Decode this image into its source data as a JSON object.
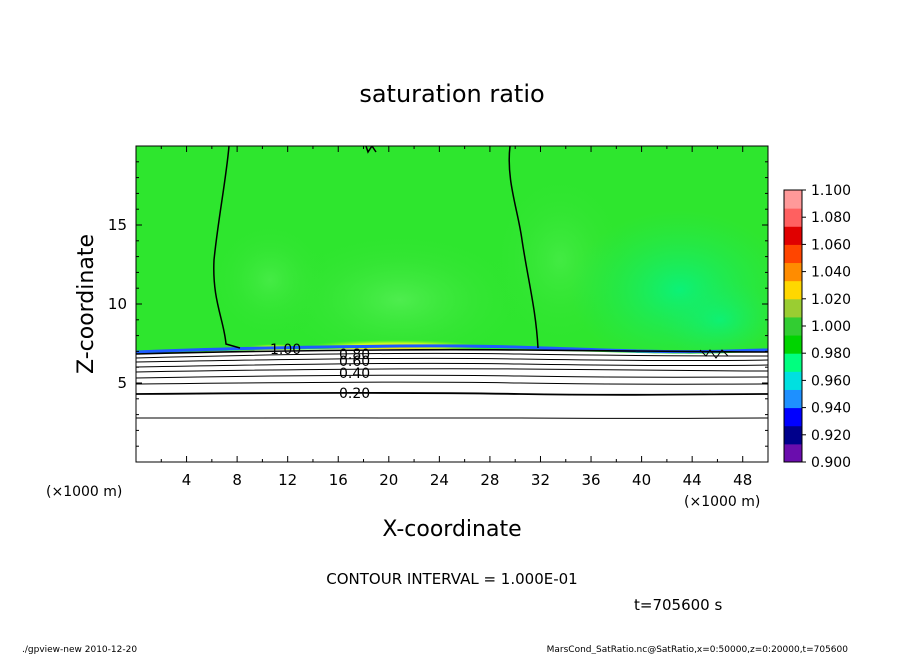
{
  "chart_data": {
    "type": "heatmap",
    "title": "saturation ratio",
    "xlabel": "X-coordinate",
    "ylabel": "Z-coordinate",
    "x_unit": "(×1000 m)",
    "z_unit": "(×1000 m)",
    "xlim": [
      0,
      50
    ],
    "ylim": [
      0,
      20
    ],
    "x_ticks": [
      4,
      8,
      12,
      16,
      20,
      24,
      28,
      32,
      36,
      40,
      44,
      48
    ],
    "y_ticks": [
      5,
      10,
      15
    ],
    "colorbar": {
      "levels": [
        "0.900",
        "0.920",
        "0.940",
        "0.960",
        "0.980",
        "1.000",
        "1.020",
        "1.040",
        "1.060",
        "1.080",
        "1.100"
      ],
      "colors": [
        "#6a0dad",
        "#00008b",
        "#0000ff",
        "#1e90ff",
        "#00e0e0",
        "#00ff7f",
        "#00d400",
        "#32cd32",
        "#9acd32",
        "#ffd700",
        "#ff8c00",
        "#ff4500",
        "#e00000",
        "#ff6060",
        "#ff9999"
      ]
    },
    "contour_labels": [
      "1.00",
      "0.80",
      "0.60",
      "0.40",
      "0.20"
    ],
    "contour_interval_text": "CONTOUR INTERVAL = 1.000E-01",
    "time_text": "t=705600 s",
    "footer_left": "./gpview-new   2010-12-20",
    "footer_right": "MarsCond_SatRatio.nc@SatRatio,x=0:50000,z=0:20000,t=705600"
  }
}
